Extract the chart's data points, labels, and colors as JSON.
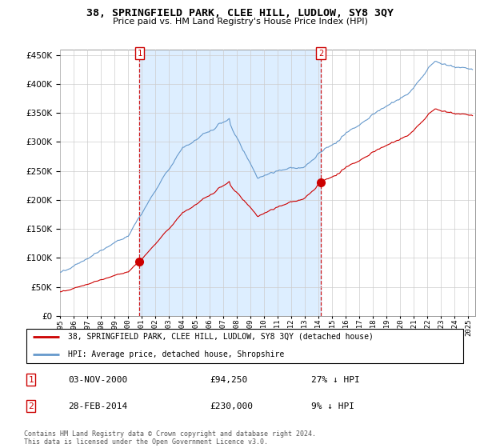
{
  "title": "38, SPRINGFIELD PARK, CLEE HILL, LUDLOW, SY8 3QY",
  "subtitle": "Price paid vs. HM Land Registry's House Price Index (HPI)",
  "ylim": [
    0,
    460000
  ],
  "yticks": [
    0,
    50000,
    100000,
    150000,
    200000,
    250000,
    300000,
    350000,
    400000,
    450000
  ],
  "xlim_start": 1995.0,
  "xlim_end": 2025.5,
  "transaction1": {
    "date_label": "03-NOV-2000",
    "price": 94250,
    "hpi_diff": "27% ↓ HPI",
    "x": 2000.84
  },
  "transaction2": {
    "date_label": "28-FEB-2014",
    "price": 230000,
    "hpi_diff": "9% ↓ HPI",
    "x": 2014.16
  },
  "legend_line1": "38, SPRINGFIELD PARK, CLEE HILL, LUDLOW, SY8 3QY (detached house)",
  "legend_line2": "HPI: Average price, detached house, Shropshire",
  "footnote": "Contains HM Land Registry data © Crown copyright and database right 2024.\nThis data is licensed under the Open Government Licence v3.0.",
  "red_color": "#cc0000",
  "blue_color": "#6699cc",
  "fill_color": "#ddeeff",
  "grid_color": "#cccccc"
}
